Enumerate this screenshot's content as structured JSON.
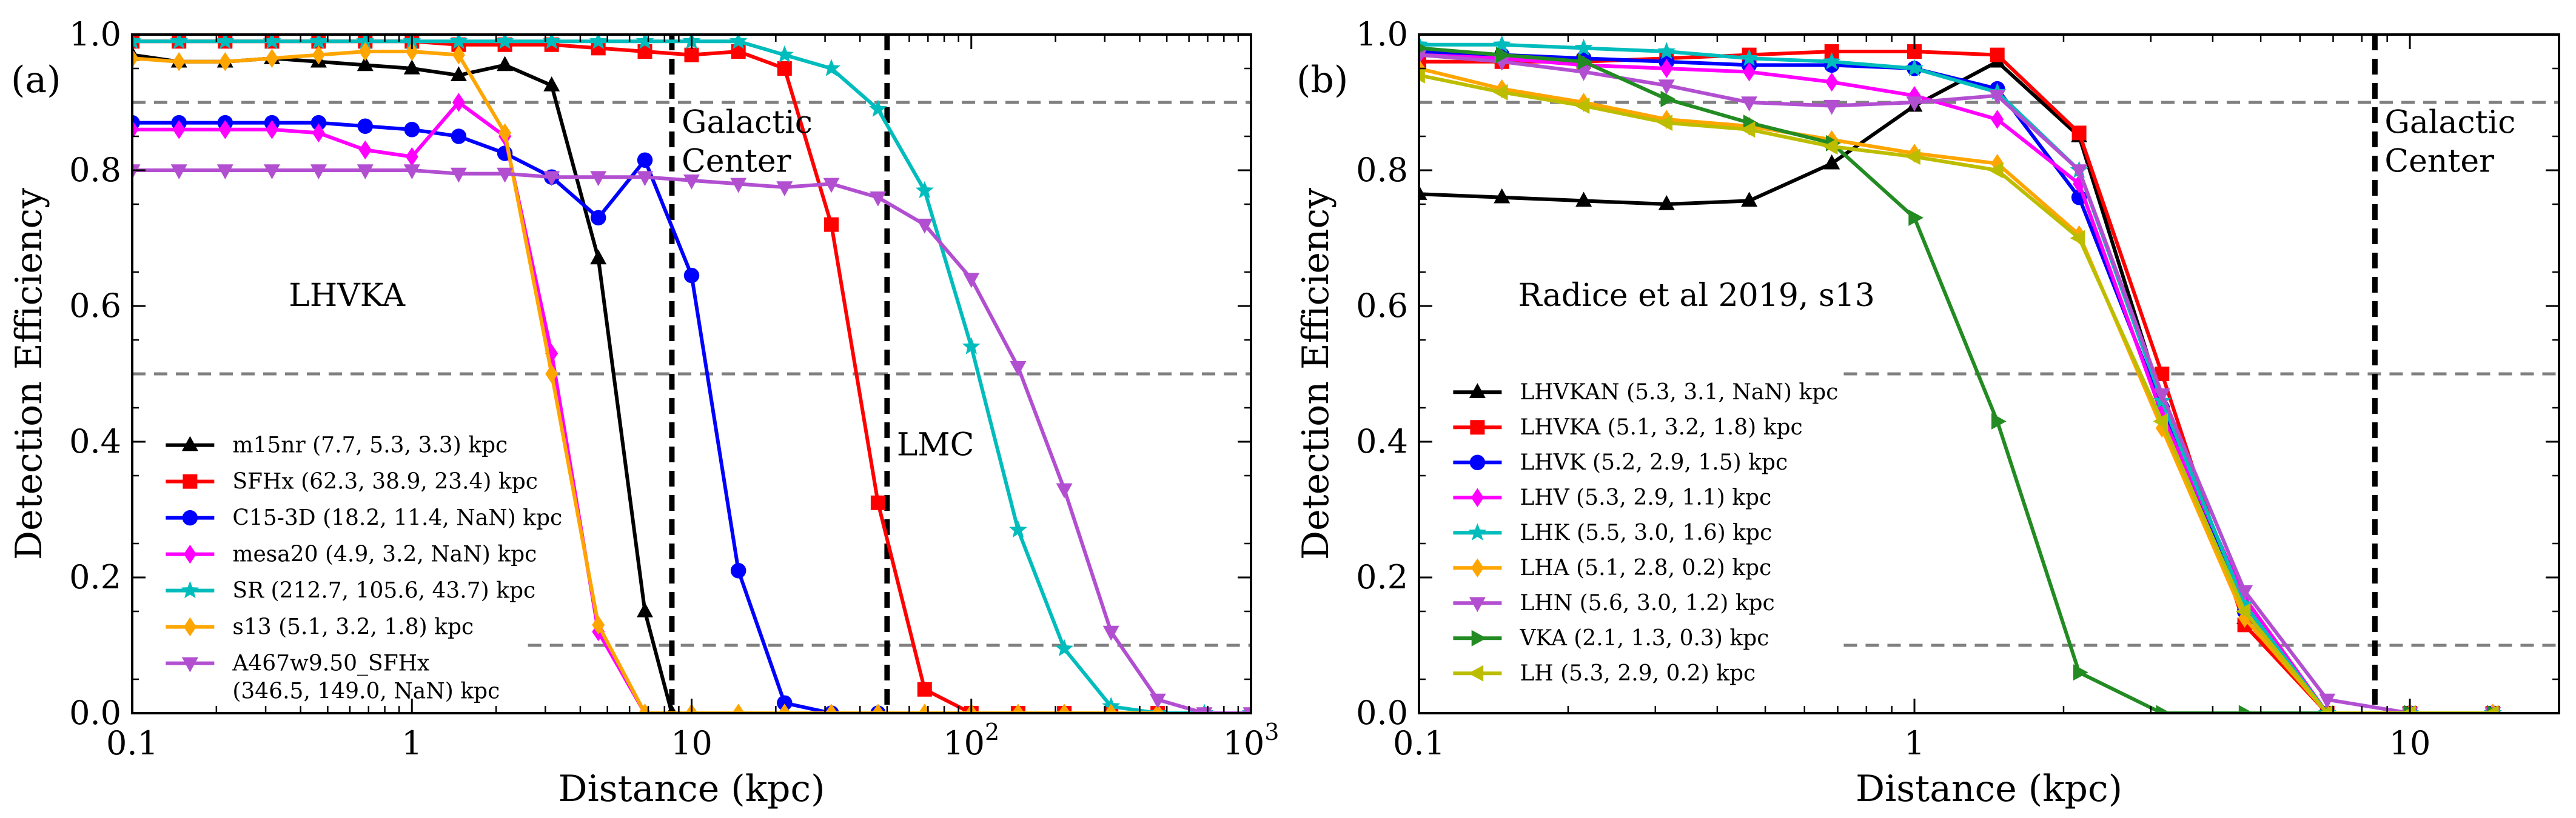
{
  "chart_data": [
    {
      "type": "line",
      "panel_label": "(a)",
      "xlabel": "Distance (kpc)",
      "ylabel": "Detection Efficiency",
      "xscale": "log",
      "xlim": [
        0.1,
        1000
      ],
      "ylim": [
        0.0,
        1.0
      ],
      "xtick_labels": [
        {
          "value": 0.1,
          "label": "0.1"
        },
        {
          "value": 1,
          "label": "1"
        },
        {
          "value": 10,
          "label": "10"
        },
        {
          "value": 100,
          "label": "10",
          "sup": "2"
        },
        {
          "value": 1000,
          "label": "10",
          "sup": "3"
        }
      ],
      "ytick_labels": [
        "0.0",
        "0.2",
        "0.4",
        "0.6",
        "0.8",
        "1.0"
      ],
      "network_label": "LHVKA",
      "hlines": [
        {
          "y": 0.9,
          "x_from": 0.1,
          "x_to": 1000
        },
        {
          "y": 0.5,
          "x_from": 0.1,
          "x_to": 1000
        },
        {
          "y": 0.1,
          "x_from": 2.6,
          "x_to": 1000
        }
      ],
      "vlines": [
        {
          "x": 8.5,
          "label": "Galactic Center",
          "label_lines": [
            "Galactic",
            "Center"
          ]
        },
        {
          "x": 50,
          "label": "LMC",
          "label_lines": [
            "LMC"
          ]
        }
      ],
      "legend_position": "lower-left",
      "series": [
        {
          "name": "m15nr",
          "label": "m15nr (7.7, 5.3, 3.3) kpc",
          "color": "#000000",
          "marker": "triangle-up",
          "x": [
            0.1,
            0.147,
            0.215,
            0.316,
            0.464,
            0.681,
            1.0,
            1.47,
            2.15,
            3.16,
            4.64,
            6.81,
            8.5
          ],
          "y": [
            0.97,
            0.96,
            0.96,
            0.965,
            0.96,
            0.955,
            0.95,
            0.94,
            0.955,
            0.925,
            0.67,
            0.15,
            0.0
          ]
        },
        {
          "name": "SFHx",
          "label": "SFHx (62.3, 38.9, 23.4) kpc",
          "color": "#ff0000",
          "marker": "square",
          "x": [
            0.1,
            0.147,
            0.215,
            0.316,
            0.464,
            0.681,
            1.0,
            1.47,
            2.15,
            3.16,
            4.64,
            6.81,
            10,
            14.7,
            21.5,
            31.6,
            46.4,
            68.1,
            100,
            147,
            215,
            316,
            464
          ],
          "y": [
            0.99,
            0.99,
            0.99,
            0.99,
            0.99,
            0.99,
            0.99,
            0.985,
            0.985,
            0.985,
            0.98,
            0.975,
            0.97,
            0.975,
            0.95,
            0.72,
            0.31,
            0.035,
            0.0,
            0.0,
            0.0,
            0.0,
            0.0
          ]
        },
        {
          "name": "C15-3D",
          "label": "C15-3D (18.2, 11.4, NaN) kpc",
          "color": "#0000ff",
          "marker": "circle",
          "x": [
            0.1,
            0.147,
            0.215,
            0.316,
            0.464,
            0.681,
            1.0,
            1.47,
            2.15,
            3.16,
            4.64,
            6.81,
            10,
            14.7,
            21.5,
            31.6,
            46.4
          ],
          "y": [
            0.87,
            0.87,
            0.87,
            0.87,
            0.87,
            0.865,
            0.86,
            0.85,
            0.825,
            0.79,
            0.73,
            0.815,
            0.645,
            0.21,
            0.015,
            0.0,
            0.0
          ]
        },
        {
          "name": "mesa20",
          "label": "mesa20 (4.9, 3.2, NaN) kpc",
          "color": "#ff00ff",
          "marker": "diamond",
          "x": [
            0.1,
            0.147,
            0.215,
            0.316,
            0.464,
            0.681,
            1.0,
            1.47,
            2.15,
            3.16,
            4.64,
            6.81
          ],
          "y": [
            0.86,
            0.86,
            0.86,
            0.86,
            0.855,
            0.83,
            0.82,
            0.9,
            0.85,
            0.53,
            0.12,
            0.0
          ]
        },
        {
          "name": "SR",
          "label": "SR (212.7, 105.6, 43.7) kpc",
          "color": "#00bcbc",
          "marker": "star",
          "x": [
            0.1,
            0.147,
            0.215,
            0.316,
            0.464,
            0.681,
            1.0,
            1.47,
            2.15,
            3.16,
            4.64,
            6.81,
            10,
            14.7,
            21.5,
            31.6,
            46.4,
            68.1,
            100,
            147,
            215,
            316,
            464,
            681,
            1000
          ],
          "y": [
            0.99,
            0.99,
            0.99,
            0.99,
            0.99,
            0.99,
            0.99,
            0.99,
            0.99,
            0.99,
            0.99,
            0.99,
            0.99,
            0.99,
            0.97,
            0.95,
            0.89,
            0.77,
            0.54,
            0.27,
            0.095,
            0.01,
            0.0,
            0.0,
            0.0
          ]
        },
        {
          "name": "s13",
          "label": "s13 (5.1, 3.2, 1.8) kpc",
          "color": "#ffa500",
          "marker": "diamond",
          "x": [
            0.1,
            0.147,
            0.215,
            0.316,
            0.464,
            0.681,
            1.0,
            1.47,
            2.15,
            3.16,
            4.64,
            6.81,
            10,
            14.7,
            21.5,
            31.6,
            46.4,
            68.1,
            100,
            147,
            215,
            316,
            464
          ],
          "y": [
            0.965,
            0.96,
            0.96,
            0.965,
            0.97,
            0.975,
            0.975,
            0.97,
            0.855,
            0.5,
            0.13,
            0.0,
            0.0,
            0.0,
            0.0,
            0.0,
            0.0,
            0.0,
            0.0,
            0.0,
            0.0,
            0.0,
            0.0
          ]
        },
        {
          "name": "A467w9.50_SFHx",
          "label_lines": [
            "A467w9.50_SFHx",
            "(346.5, 149.0, NaN) kpc"
          ],
          "color": "#b24fd1",
          "marker": "triangle-down",
          "x": [
            0.1,
            0.147,
            0.215,
            0.316,
            0.464,
            0.681,
            1.0,
            1.47,
            2.15,
            3.16,
            4.64,
            6.81,
            10,
            14.7,
            21.5,
            31.6,
            46.4,
            68.1,
            100,
            147,
            215,
            316,
            464,
            681,
            1000
          ],
          "y": [
            0.8,
            0.8,
            0.8,
            0.8,
            0.8,
            0.8,
            0.8,
            0.795,
            0.795,
            0.79,
            0.79,
            0.79,
            0.785,
            0.78,
            0.775,
            0.78,
            0.76,
            0.72,
            0.64,
            0.51,
            0.33,
            0.12,
            0.02,
            0.0,
            0.0
          ]
        }
      ]
    },
    {
      "type": "line",
      "panel_label": "(b)",
      "xlabel": "Distance (kpc)",
      "ylabel": "Detection Efficiency",
      "xscale": "log",
      "xlim": [
        0.1,
        20
      ],
      "ylim": [
        0.0,
        1.0
      ],
      "xtick_labels": [
        {
          "value": 0.1,
          "label": "0.1"
        },
        {
          "value": 1,
          "label": "1"
        },
        {
          "value": 10,
          "label": "10"
        }
      ],
      "ytick_labels": [
        "0.0",
        "0.2",
        "0.4",
        "0.6",
        "0.8",
        "1.0"
      ],
      "network_label": "Radice et al 2019, s13",
      "hlines": [
        {
          "y": 0.9,
          "x_from": 0.1,
          "x_to": 20
        },
        {
          "y": 0.5,
          "x_from": 0.72,
          "x_to": 20
        },
        {
          "y": 0.1,
          "x_from": 0.72,
          "x_to": 20
        }
      ],
      "vlines": [
        {
          "x": 8.5,
          "label": "Galactic Center",
          "label_lines": [
            "Galactic",
            "Center"
          ]
        }
      ],
      "legend_position": "lower-left",
      "series": [
        {
          "name": "LHVKAN",
          "label": "LHVKAN (5.3, 3.1, NaN) kpc",
          "color": "#000000",
          "marker": "triangle-up",
          "x": [
            0.1,
            0.147,
            0.215,
            0.316,
            0.464,
            0.681,
            1.0,
            1.47,
            2.15,
            3.16,
            4.64,
            6.81,
            10,
            14.7
          ],
          "y": [
            0.765,
            0.76,
            0.755,
            0.75,
            0.755,
            0.81,
            0.895,
            0.96,
            0.85,
            0.46,
            0.14,
            0.0,
            0.0,
            0.0
          ]
        },
        {
          "name": "LHVKA",
          "label": "LHVKA (5.1, 3.2, 1.8) kpc",
          "color": "#ff0000",
          "marker": "square",
          "x": [
            0.1,
            0.147,
            0.215,
            0.316,
            0.464,
            0.681,
            1.0,
            1.47,
            2.15,
            3.16,
            4.64,
            6.81,
            10,
            14.7
          ],
          "y": [
            0.96,
            0.96,
            0.96,
            0.965,
            0.97,
            0.975,
            0.975,
            0.97,
            0.855,
            0.5,
            0.13,
            0.0,
            0.0,
            0.0
          ]
        },
        {
          "name": "LHVK",
          "label": "LHVK (5.2, 2.9, 1.5) kpc",
          "color": "#0000ff",
          "marker": "circle",
          "x": [
            0.1,
            0.147,
            0.215,
            0.316,
            0.464,
            0.681,
            1.0,
            1.47,
            2.15,
            3.16,
            4.64,
            6.81,
            10,
            14.7
          ],
          "y": [
            0.975,
            0.97,
            0.965,
            0.96,
            0.955,
            0.955,
            0.95,
            0.92,
            0.76,
            0.45,
            0.15,
            0.0,
            0.0,
            0.0
          ]
        },
        {
          "name": "LHV",
          "label": "LHV (5.3, 2.9, 1.1) kpc",
          "color": "#ff00ff",
          "marker": "diamond",
          "x": [
            0.1,
            0.147,
            0.215,
            0.316,
            0.464,
            0.681,
            1.0,
            1.47,
            2.15,
            3.16,
            4.64,
            6.81,
            10,
            14.7
          ],
          "y": [
            0.97,
            0.965,
            0.955,
            0.95,
            0.945,
            0.93,
            0.91,
            0.875,
            0.78,
            0.44,
            0.17,
            0.0,
            0.0,
            0.0
          ]
        },
        {
          "name": "LHK",
          "label": "LHK (5.5, 3.0, 1.6) kpc",
          "color": "#00bcbc",
          "marker": "star",
          "x": [
            0.1,
            0.147,
            0.215,
            0.316,
            0.464,
            0.681,
            1.0,
            1.47,
            2.15,
            3.16,
            4.64,
            6.81,
            10,
            14.7
          ],
          "y": [
            0.985,
            0.985,
            0.98,
            0.975,
            0.965,
            0.96,
            0.95,
            0.915,
            0.8,
            0.46,
            0.16,
            0.0,
            0.0,
            0.0
          ]
        },
        {
          "name": "LHA",
          "label": "LHA (5.1, 2.8, 0.2) kpc",
          "color": "#ffa500",
          "marker": "diamond",
          "x": [
            0.1,
            0.147,
            0.215,
            0.316,
            0.464,
            0.681,
            1.0,
            1.47,
            2.15,
            3.16,
            4.64,
            6.81,
            10,
            14.7
          ],
          "y": [
            0.95,
            0.92,
            0.9,
            0.875,
            0.865,
            0.845,
            0.825,
            0.81,
            0.705,
            0.42,
            0.14,
            0.0,
            0.0,
            0.0
          ]
        },
        {
          "name": "LHN",
          "label": "LHN (5.6, 3.0, 1.2) kpc",
          "color": "#b24fd1",
          "marker": "triangle-down",
          "x": [
            0.1,
            0.147,
            0.215,
            0.316,
            0.464,
            0.681,
            1.0,
            1.47,
            2.15,
            3.16,
            4.64,
            6.81,
            10,
            14.7
          ],
          "y": [
            0.97,
            0.96,
            0.945,
            0.925,
            0.9,
            0.895,
            0.9,
            0.91,
            0.8,
            0.47,
            0.18,
            0.02,
            0.0,
            0.0
          ]
        },
        {
          "name": "VKA",
          "label": "VKA (2.1, 1.3, 0.3) kpc",
          "color": "#228b22",
          "marker": "triangle-right",
          "x": [
            0.1,
            0.147,
            0.215,
            0.316,
            0.464,
            0.681,
            1.0,
            1.47,
            2.15,
            3.16,
            4.64,
            6.81,
            10,
            14.7
          ],
          "y": [
            0.98,
            0.97,
            0.96,
            0.905,
            0.87,
            0.84,
            0.73,
            0.43,
            0.06,
            0.0,
            0.0,
            0.0,
            0.0,
            0.0
          ]
        },
        {
          "name": "LH",
          "label": "LH (5.3, 2.9, 0.2) kpc",
          "color": "#bdbd00",
          "marker": "triangle-left",
          "x": [
            0.1,
            0.147,
            0.215,
            0.316,
            0.464,
            0.681,
            1.0,
            1.47,
            2.15,
            3.16,
            4.64,
            6.81,
            10,
            14.7
          ],
          "y": [
            0.94,
            0.915,
            0.895,
            0.87,
            0.86,
            0.835,
            0.82,
            0.8,
            0.7,
            0.43,
            0.15,
            0.0,
            0.0,
            0.0
          ]
        }
      ]
    }
  ]
}
